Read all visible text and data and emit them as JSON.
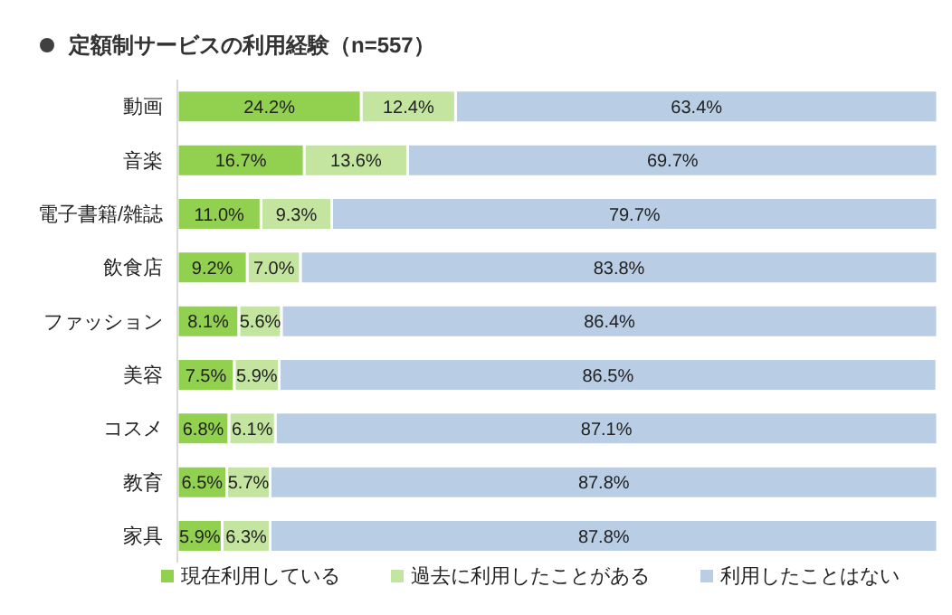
{
  "chart_data": {
    "type": "bar",
    "orientation": "horizontal",
    "stacked": true,
    "title": "定額制サービスの利用経験（n=557）",
    "categories": [
      "動画",
      "音楽",
      "電子書籍/雑誌",
      "飲食店",
      "ファッション",
      "美容",
      "コスメ",
      "教育",
      "家具"
    ],
    "xlim": [
      0,
      100
    ],
    "tick_labels": "y",
    "grid": false,
    "legend": "bottom",
    "series": [
      {
        "name": "現在利用している",
        "color": "#92d050",
        "values": [
          24.2,
          16.7,
          11.0,
          9.2,
          8.1,
          7.5,
          6.8,
          6.5,
          5.9
        ],
        "value_labels": [
          "24.2%",
          "16.7%",
          "11.0%",
          "9.2%",
          "8.1%",
          "7.5%",
          "6.8%",
          "6.5%",
          "5.9%"
        ]
      },
      {
        "name": "過去に利用したことがある",
        "color": "#c4e59f",
        "values": [
          12.4,
          13.6,
          9.3,
          7.0,
          5.6,
          5.9,
          6.1,
          5.7,
          6.3
        ],
        "value_labels": [
          "12.4%",
          "13.6%",
          "9.3%",
          "7.0%",
          "5.6%",
          "5.9%",
          "6.1%",
          "5.7%",
          "6.3%"
        ]
      },
      {
        "name": "利用したことはない",
        "color": "#b9cde5",
        "values": [
          63.4,
          69.7,
          79.7,
          83.8,
          86.4,
          86.5,
          87.1,
          87.8,
          87.8
        ],
        "value_labels": [
          "63.4%",
          "69.7%",
          "79.7%",
          "83.8%",
          "86.4%",
          "86.5%",
          "87.1%",
          "87.8%",
          "87.8%"
        ]
      }
    ]
  }
}
